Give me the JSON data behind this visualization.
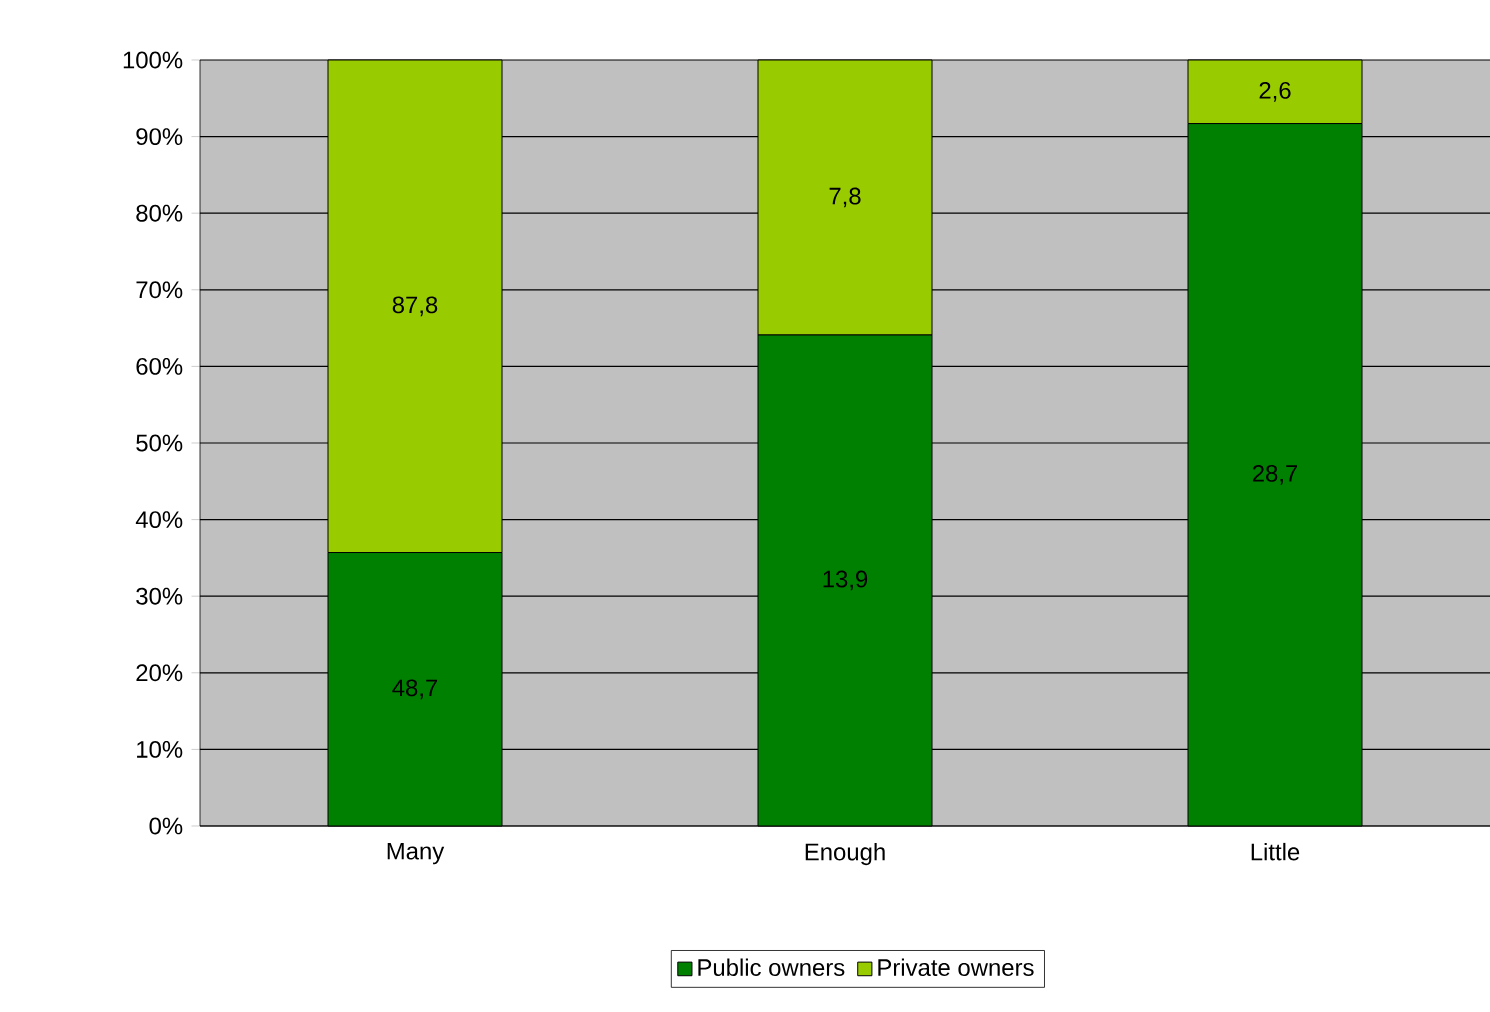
{
  "chart_data": {
    "type": "bar",
    "stacked": true,
    "categories": [
      "Many",
      "Enough",
      "Little"
    ],
    "series": [
      {
        "name": "Public owners",
        "color": "#008000",
        "values": [
          35.7,
          64.1,
          91.7
        ]
      },
      {
        "name": "Private owners",
        "color": "#99cc00",
        "values": [
          64.3,
          35.9,
          8.3
        ]
      }
    ],
    "annotations": [
      "48,7",
      "13,9",
      "28,7",
      "87,8",
      "7,8",
      "2,6"
    ],
    "ylim": [
      0,
      100
    ],
    "yticks": [
      {
        "value": 0,
        "label": "0%"
      },
      {
        "value": 10,
        "label": "10%"
      },
      {
        "value": 20,
        "label": "20%"
      },
      {
        "value": 30,
        "label": "30%"
      },
      {
        "value": 40,
        "label": "40%"
      },
      {
        "value": 50,
        "label": "50%"
      },
      {
        "value": 60,
        "label": "60%"
      },
      {
        "value": 70,
        "label": "70%"
      },
      {
        "value": 80,
        "label": "80%"
      },
      {
        "value": 90,
        "label": "90%"
      },
      {
        "value": 100,
        "label": "100%"
      }
    ],
    "grid": "y",
    "legend": "bottom"
  }
}
